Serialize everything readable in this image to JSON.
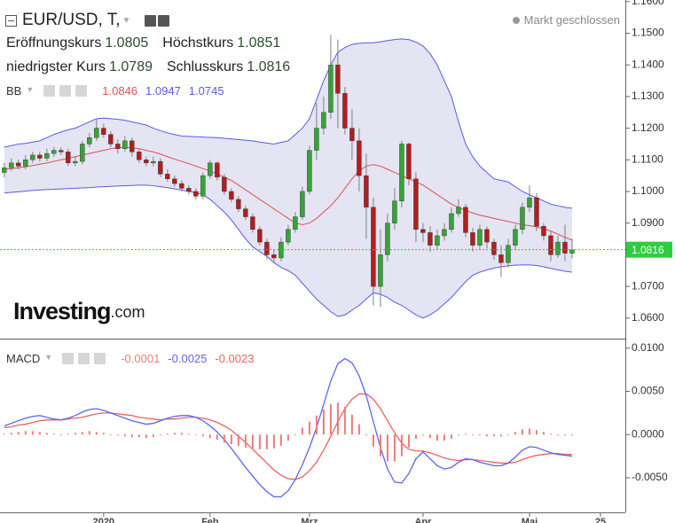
{
  "header": {
    "symbol": "EUR/USD, T,",
    "status": "Markt geschlossen",
    "logo": "Investing",
    "logo_suffix": ".com"
  },
  "chart_data": [
    {
      "type": "candlestick",
      "ohlc_legend": [
        {
          "label": "Eröffnungskurs",
          "value": "1.0805"
        },
        {
          "label": "Höchstkurs",
          "value": "1.0851"
        },
        {
          "label": "niedrigster Kurs",
          "value": "1.0789"
        },
        {
          "label": "Schlusskurs",
          "value": "1.0816"
        }
      ],
      "indicator": {
        "name": "BB",
        "labels": [
          "1.0846",
          "1.0947",
          "1.0745"
        ]
      },
      "xlim": [
        -0.6,
        87.5
      ],
      "ylim": [
        1.0535,
        1.1605
      ],
      "yticks": [
        {
          "value": 1.16,
          "label": "1.1600"
        },
        {
          "value": 1.15,
          "label": "1.1500"
        },
        {
          "value": 1.14,
          "label": "1.1400"
        },
        {
          "value": 1.13,
          "label": "1.1300"
        },
        {
          "value": 1.12,
          "label": "1.1200"
        },
        {
          "value": 1.11,
          "label": "1.1100"
        },
        {
          "value": 1.1,
          "label": "1.1000"
        },
        {
          "value": 1.09,
          "label": "1.0900"
        },
        {
          "value": 1.07,
          "label": "1.0700"
        },
        {
          "value": 1.06,
          "label": "1.0600"
        }
      ],
      "up_color": "#36a336",
      "down_color": "#b01e1e",
      "wick_color": "#808080",
      "band_fill": "#e4e4f2",
      "last": {
        "value": 1.0816,
        "label": "1.0816",
        "color": "#2ecc40"
      },
      "open": [
        1.106,
        1.1075,
        1.109,
        1.108,
        1.11,
        1.1115,
        1.1105,
        1.112,
        1.113,
        1.1125,
        1.109,
        1.1095,
        1.115,
        1.117,
        1.12,
        1.118,
        1.115,
        1.1135,
        1.116,
        1.1125,
        1.11,
        1.109,
        1.1095,
        1.1055,
        1.104,
        1.1025,
        1.101,
        1.1,
        1.0985,
        1.105,
        1.109,
        1.1045,
        1.1,
        1.0975,
        1.0945,
        1.092,
        1.088,
        1.084,
        1.08,
        1.079,
        1.084,
        1.088,
        1.092,
        1.1,
        1.113,
        1.12,
        1.125,
        1.14,
        1.131,
        1.12,
        1.116,
        1.105,
        1.095,
        1.07,
        1.08,
        1.09,
        1.097,
        1.115,
        1.104,
        1.088,
        1.087,
        1.083,
        1.086,
        1.088,
        1.093,
        1.095,
        1.087,
        1.083,
        1.088,
        1.084,
        1.08,
        1.0775,
        1.083,
        1.088,
        1.095,
        1.098,
        1.089,
        1.086,
        1.08,
        1.084,
        1.0805
      ],
      "high": [
        1.109,
        1.1105,
        1.11,
        1.1115,
        1.1125,
        1.1125,
        1.1135,
        1.114,
        1.114,
        1.1135,
        1.111,
        1.116,
        1.1185,
        1.123,
        1.1215,
        1.119,
        1.1165,
        1.1175,
        1.117,
        1.1135,
        1.111,
        1.111,
        1.1105,
        1.107,
        1.105,
        1.1035,
        1.102,
        1.101,
        1.106,
        1.11,
        1.1095,
        1.1055,
        1.101,
        1.0985,
        1.0955,
        1.093,
        1.089,
        1.085,
        1.0815,
        1.0855,
        1.0895,
        1.0935,
        1.1015,
        1.1145,
        1.128,
        1.13,
        1.1495,
        1.148,
        1.133,
        1.126,
        1.12,
        1.112,
        1.098,
        1.088,
        1.093,
        1.101,
        1.116,
        1.1155,
        1.106,
        1.09,
        1.089,
        1.088,
        1.09,
        1.095,
        1.0975,
        1.096,
        1.0885,
        1.0895,
        1.089,
        1.085,
        1.083,
        1.085,
        1.0895,
        1.0965,
        1.102,
        1.0995,
        1.09,
        1.0875,
        1.086,
        1.0895,
        1.0851
      ],
      "low": [
        1.1045,
        1.1065,
        1.107,
        1.107,
        1.109,
        1.1095,
        1.1095,
        1.111,
        1.1115,
        1.108,
        1.108,
        1.1085,
        1.114,
        1.116,
        1.117,
        1.114,
        1.112,
        1.1125,
        1.111,
        1.109,
        1.108,
        1.108,
        1.1045,
        1.103,
        1.1015,
        1.1,
        1.099,
        1.0975,
        1.0975,
        1.104,
        1.1035,
        1.099,
        1.0965,
        1.0935,
        1.091,
        1.087,
        1.083,
        1.0785,
        1.0775,
        1.078,
        1.083,
        1.087,
        1.091,
        1.099,
        1.11,
        1.118,
        1.123,
        1.12,
        1.118,
        1.11,
        1.1,
        1.085,
        1.064,
        1.0635,
        1.078,
        1.088,
        1.095,
        1.102,
        1.084,
        1.084,
        1.081,
        1.0815,
        1.0845,
        1.087,
        1.092,
        1.0855,
        1.081,
        1.0815,
        1.082,
        1.0785,
        1.073,
        1.076,
        1.0815,
        1.0865,
        1.0935,
        1.0875,
        1.0845,
        1.078,
        1.079,
        1.078,
        1.0789
      ],
      "close": [
        1.1075,
        1.109,
        1.108,
        1.11,
        1.1115,
        1.1105,
        1.112,
        1.113,
        1.1125,
        1.109,
        1.1095,
        1.115,
        1.117,
        1.12,
        1.118,
        1.115,
        1.1135,
        1.116,
        1.1125,
        1.11,
        1.109,
        1.1095,
        1.1055,
        1.104,
        1.1025,
        1.101,
        1.1,
        1.0985,
        1.105,
        1.109,
        1.1045,
        1.1,
        1.0975,
        1.0945,
        1.092,
        1.088,
        1.084,
        1.08,
        1.079,
        1.084,
        1.088,
        1.092,
        1.1,
        1.113,
        1.12,
        1.125,
        1.14,
        1.131,
        1.12,
        1.116,
        1.105,
        1.095,
        1.07,
        1.08,
        1.09,
        1.097,
        1.115,
        1.104,
        1.088,
        1.087,
        1.083,
        1.086,
        1.088,
        1.093,
        1.095,
        1.087,
        1.083,
        1.088,
        1.084,
        1.08,
        1.0775,
        1.083,
        1.088,
        1.095,
        1.098,
        1.089,
        1.086,
        1.08,
        1.084,
        1.0805,
        1.0816
      ],
      "series": [
        {
          "color": "#e05050",
          "values": [
            1.107,
            1.1072,
            1.1075,
            1.1078,
            1.1082,
            1.1086,
            1.109,
            1.1095,
            1.11,
            1.1105,
            1.111,
            1.1115,
            1.112,
            1.1125,
            1.113,
            1.1135,
            1.1138,
            1.114,
            1.1138,
            1.1135,
            1.113,
            1.1125,
            1.1118,
            1.111,
            1.1102,
            1.1095,
            1.1088,
            1.108,
            1.1072,
            1.1065,
            1.1055,
            1.1045,
            1.1035,
            1.102,
            1.1005,
            1.099,
            1.0975,
            1.096,
            1.0945,
            1.093,
            1.0915,
            1.09,
            1.0895,
            1.09,
            1.0915,
            1.0935,
            1.0955,
            1.098,
            1.101,
            1.104,
            1.1065,
            1.108,
            1.1085,
            1.108,
            1.107,
            1.106,
            1.105,
            1.104,
            1.103,
            1.102,
            1.1005,
            1.099,
            1.0975,
            1.096,
            1.095,
            1.094,
            1.0932,
            1.0925,
            1.092,
            1.0915,
            1.091,
            1.0905,
            1.09,
            1.0895,
            1.0892,
            1.0888,
            1.0882,
            1.0875,
            1.0865,
            1.0855,
            1.0846
          ]
        },
        {
          "color": "#5a5ae6",
          "values": [
            1.114,
            1.1145,
            1.115,
            1.1152,
            1.1156,
            1.116,
            1.117,
            1.118,
            1.1188,
            1.1195,
            1.12,
            1.121,
            1.122,
            1.123,
            1.1232,
            1.123,
            1.1228,
            1.1225,
            1.122,
            1.1215,
            1.121,
            1.12,
            1.1192,
            1.1185,
            1.118,
            1.1175,
            1.1174,
            1.1173,
            1.1172,
            1.1171,
            1.117,
            1.1168,
            1.1166,
            1.1164,
            1.1162,
            1.116,
            1.1156,
            1.1153,
            1.115,
            1.1155,
            1.116,
            1.118,
            1.12,
            1.123,
            1.129,
            1.135,
            1.14,
            1.144,
            1.1455,
            1.1465,
            1.1468,
            1.147,
            1.147,
            1.1473,
            1.1477,
            1.148,
            1.1482,
            1.148,
            1.1472,
            1.146,
            1.1435,
            1.14,
            1.135,
            1.13,
            1.122,
            1.115,
            1.111,
            1.108,
            1.106,
            1.104,
            1.1035,
            1.103,
            1.1015,
            1.1,
            1.099,
            1.098,
            1.097,
            1.096,
            1.0955,
            1.095,
            1.0947
          ]
        },
        {
          "color": "#5a5ae6",
          "values": [
            1.0995,
            1.0997,
            1.0999,
            1.1001,
            1.1003,
            1.1005,
            1.1006,
            1.1007,
            1.1008,
            1.1009,
            1.101,
            1.1011,
            1.1012,
            1.1014,
            1.1015,
            1.1016,
            1.1017,
            1.1018,
            1.1019,
            1.102,
            1.102,
            1.1018,
            1.1015,
            1.1012,
            1.1008,
            1.1004,
            1.1,
            1.0996,
            1.099,
            1.0975,
            1.0955,
            1.0935,
            1.091,
            1.088,
            1.085,
            1.0825,
            1.081,
            1.0795,
            1.0775,
            1.076,
            1.075,
            1.0735,
            1.071,
            1.0685,
            1.066,
            1.064,
            1.062,
            1.0605,
            1.061,
            1.0625,
            1.064,
            1.066,
            1.068,
            1.0675,
            1.0665,
            1.065,
            1.064,
            1.0625,
            1.061,
            1.06,
            1.061,
            1.0625,
            1.0645,
            1.0665,
            1.069,
            1.0715,
            1.0735,
            1.0745,
            1.0752,
            1.0758,
            1.0762,
            1.0765,
            1.0767,
            1.0768,
            1.0768,
            1.0766,
            1.0762,
            1.0757,
            1.0752,
            1.0748,
            1.0745
          ]
        }
      ]
    },
    {
      "type": "macd",
      "indicator": {
        "name": "MACD",
        "labels": [
          "-0.0001",
          "-0.0025",
          "-0.0023"
        ]
      },
      "xlim": [
        -0.6,
        87.5
      ],
      "ylim": [
        -0.009,
        0.011
      ],
      "yticks": [
        {
          "value": 0.01,
          "label": "0.0100"
        },
        {
          "value": 0.005,
          "label": "0.0050"
        },
        {
          "value": 0,
          "label": "0.0000"
        },
        {
          "value": -0.005,
          "label": "-0.0050"
        }
      ],
      "xticks": [
        {
          "value": 14,
          "label": "2020"
        },
        {
          "value": 29,
          "label": "Feb"
        },
        {
          "value": 43,
          "label": "Mrz"
        },
        {
          "value": 59,
          "label": "Apr"
        },
        {
          "value": 74,
          "label": "Mai"
        },
        {
          "value": 84,
          "label": "25"
        }
      ],
      "series": [
        {
          "color": "#ef7a7a",
          "values": [
            0.0001,
            0.0002,
            0.0003,
            0.0004,
            0.0004,
            0.0003,
            0.0002,
            0.0001,
            0.0,
            0.0001,
            0.0002,
            0.0003,
            0.0004,
            0.0003,
            0.0002,
            0.0,
            -0.0001,
            -0.0002,
            -0.0003,
            -0.0003,
            -0.0004,
            -0.0003,
            -0.0001,
            0.0001,
            0.0002,
            0.0002,
            0.0001,
            0.0,
            -0.0002,
            -0.0004,
            -0.0006,
            -0.0009,
            -0.0011,
            -0.0013,
            -0.0015,
            -0.0016,
            -0.0017,
            -0.0017,
            -0.0016,
            -0.0013,
            -0.0007,
            0.0,
            0.0008,
            0.0015,
            0.0022,
            0.0029,
            0.0035,
            0.0037,
            0.0032,
            0.0023,
            0.0012,
            -0.0001,
            -0.0014,
            -0.0025,
            -0.0031,
            -0.0031,
            -0.0025,
            -0.0015,
            -0.0005,
            -0.0001,
            -0.0004,
            -0.0007,
            -0.0007,
            -0.0005,
            -0.0001,
            0.0001,
            0.0,
            -0.0001,
            -0.0002,
            -0.0002,
            -0.0002,
            0.0,
            0.0003,
            0.0006,
            0.0007,
            0.0005,
            0.0003,
            0.0001,
            -0.0001,
            -0.0001,
            -0.0001
          ]
        },
        {
          "color": "#5b66ea",
          "values": [
            0.001,
            0.0013,
            0.0016,
            0.0019,
            0.0021,
            0.0022,
            0.002,
            0.0018,
            0.0017,
            0.0019,
            0.0022,
            0.0026,
            0.0029,
            0.003,
            0.0028,
            0.0025,
            0.0022,
            0.0019,
            0.0016,
            0.0014,
            0.0012,
            0.0013,
            0.0016,
            0.0019,
            0.0021,
            0.0022,
            0.0022,
            0.002,
            0.0016,
            0.001,
            0.0003,
            -0.0006,
            -0.0016,
            -0.0027,
            -0.0038,
            -0.0048,
            -0.0058,
            -0.0066,
            -0.0072,
            -0.0072,
            -0.0065,
            -0.0052,
            -0.0035,
            -0.0015,
            0.0008,
            0.0035,
            0.0062,
            0.0082,
            0.0088,
            0.0083,
            0.0068,
            0.0045,
            0.0015,
            -0.0015,
            -0.004,
            -0.0055,
            -0.0056,
            -0.0045,
            -0.0028,
            -0.002,
            -0.0028,
            -0.0036,
            -0.004,
            -0.0038,
            -0.0032,
            -0.0028,
            -0.0029,
            -0.0032,
            -0.0034,
            -0.0036,
            -0.0036,
            -0.0033,
            -0.0026,
            -0.0018,
            -0.0014,
            -0.0015,
            -0.0018,
            -0.0021,
            -0.0023,
            -0.0024,
            -0.0025
          ]
        },
        {
          "color": "#ee6060",
          "values": [
            0.0008,
            0.0009,
            0.0011,
            0.0012,
            0.0014,
            0.0016,
            0.0017,
            0.0017,
            0.0017,
            0.0018,
            0.0019,
            0.002,
            0.0022,
            0.0024,
            0.0025,
            0.0025,
            0.0024,
            0.0023,
            0.0022,
            0.002,
            0.0019,
            0.0018,
            0.0017,
            0.0018,
            0.0018,
            0.0019,
            0.002,
            0.002,
            0.0019,
            0.0017,
            0.0014,
            0.001,
            0.0005,
            -0.0002,
            -0.0009,
            -0.0017,
            -0.0025,
            -0.0033,
            -0.0041,
            -0.0047,
            -0.0051,
            -0.0052,
            -0.0049,
            -0.0042,
            -0.0032,
            -0.0018,
            -0.0002,
            0.0015,
            0.003,
            0.0041,
            0.0047,
            0.0047,
            0.0041,
            0.003,
            0.0016,
            0.0002,
            -0.001,
            -0.0017,
            -0.0019,
            -0.0019,
            -0.0021,
            -0.0024,
            -0.0027,
            -0.0029,
            -0.003,
            -0.0029,
            -0.0029,
            -0.003,
            -0.0031,
            -0.0032,
            -0.0033,
            -0.0033,
            -0.0032,
            -0.0029,
            -0.0026,
            -0.0024,
            -0.0023,
            -0.0022,
            -0.0022,
            -0.0023,
            -0.0023
          ]
        }
      ]
    }
  ]
}
